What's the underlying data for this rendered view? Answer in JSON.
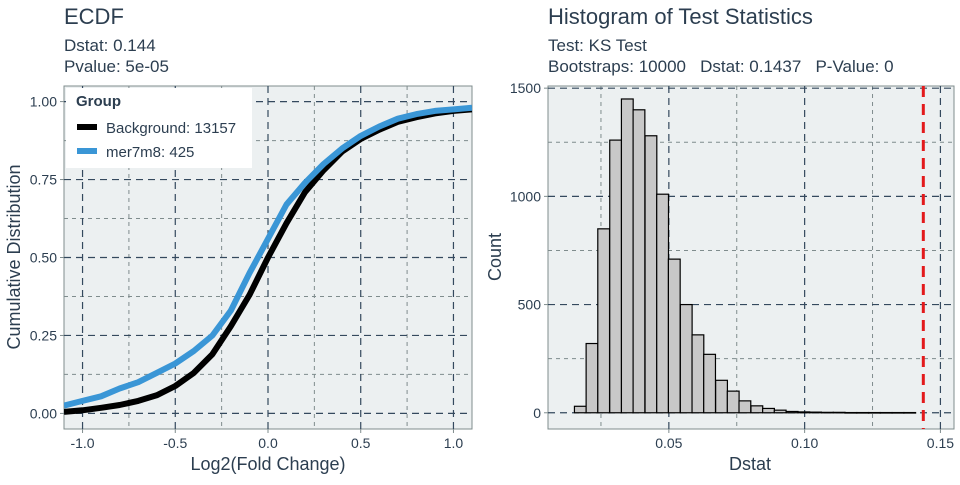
{
  "chart_data": [
    {
      "type": "line",
      "title": "ECDF",
      "subtitle_lines": [
        "Dstat: 0.144",
        "Pvalue: 5e-05"
      ],
      "xlabel": "Log2(Fold Change)",
      "ylabel": "Cumulative Distribution",
      "xlim": [
        -1.1,
        1.1
      ],
      "ylim": [
        -0.05,
        1.05
      ],
      "x_ticks": [
        -1.0,
        -0.5,
        0.0,
        0.5,
        1.0
      ],
      "x_tick_labels": [
        "-1.0",
        "-0.5",
        "0.0",
        "0.5",
        "1.0"
      ],
      "y_ticks": [
        0.0,
        0.25,
        0.5,
        0.75,
        1.0
      ],
      "y_tick_labels": [
        "0.00",
        "0.25",
        "0.50",
        "0.75",
        "1.00"
      ],
      "grid": true,
      "legend": {
        "title": "Group",
        "placement": "top-left",
        "entries": [
          "Background: 13157",
          "mer7m8: 425"
        ]
      },
      "series": [
        {
          "name": "Background: 13157",
          "color": "#000000",
          "x": [
            -1.1,
            -1.0,
            -0.9,
            -0.8,
            -0.7,
            -0.6,
            -0.5,
            -0.4,
            -0.3,
            -0.2,
            -0.1,
            0.0,
            0.1,
            0.2,
            0.3,
            0.4,
            0.5,
            0.6,
            0.7,
            0.8,
            0.9,
            1.0,
            1.1
          ],
          "y": [
            0.005,
            0.01,
            0.018,
            0.027,
            0.04,
            0.058,
            0.088,
            0.13,
            0.19,
            0.28,
            0.38,
            0.5,
            0.61,
            0.71,
            0.78,
            0.84,
            0.88,
            0.91,
            0.935,
            0.95,
            0.962,
            0.97,
            0.975
          ]
        },
        {
          "name": "mer7m8: 425",
          "color": "#3a96d6",
          "x": [
            -1.1,
            -1.0,
            -0.9,
            -0.8,
            -0.7,
            -0.6,
            -0.5,
            -0.4,
            -0.3,
            -0.2,
            -0.1,
            0.0,
            0.1,
            0.2,
            0.3,
            0.4,
            0.5,
            0.6,
            0.7,
            0.8,
            0.9,
            1.0,
            1.1
          ],
          "y": [
            0.025,
            0.04,
            0.055,
            0.08,
            0.1,
            0.13,
            0.16,
            0.2,
            0.25,
            0.33,
            0.45,
            0.56,
            0.67,
            0.74,
            0.8,
            0.85,
            0.89,
            0.92,
            0.945,
            0.96,
            0.97,
            0.975,
            0.98
          ]
        }
      ]
    },
    {
      "type": "bar",
      "title": "Histogram of Test Statistics",
      "subtitle_lines": [
        "Test: KS Test",
        "Bootstraps: 10000   Dstat: 0.1437   P-Value: 0"
      ],
      "xlabel": "Dstat",
      "ylabel": "Count",
      "xlim": [
        0.0055,
        0.155
      ],
      "ylim": [
        -75,
        1510
      ],
      "x_ticks": [
        0.05,
        0.1,
        0.15
      ],
      "x_tick_labels": [
        "0.05",
        "0.10",
        "0.15"
      ],
      "y_ticks": [
        0,
        500,
        1000,
        1500
      ],
      "y_tick_labels": [
        "0",
        "500",
        "1000",
        "1500"
      ],
      "grid": true,
      "bin_width": 0.00433,
      "bin_centers": [
        0.0174,
        0.0217,
        0.026,
        0.0304,
        0.0347,
        0.039,
        0.0434,
        0.0477,
        0.052,
        0.0564,
        0.0607,
        0.065,
        0.0694,
        0.0737,
        0.078,
        0.0824,
        0.0867,
        0.091,
        0.0954,
        0.0997,
        0.104,
        0.1084,
        0.1127,
        0.117,
        0.1214,
        0.1257,
        0.13,
        0.1344,
        0.1387
      ],
      "values": [
        30,
        320,
        850,
        1260,
        1450,
        1400,
        1280,
        1010,
        710,
        500,
        360,
        270,
        150,
        100,
        55,
        32,
        20,
        12,
        6,
        4,
        3,
        2,
        2,
        1,
        1,
        1,
        1,
        1,
        1
      ],
      "bar_fill": "#c8c8c8",
      "bar_stroke": "#000000",
      "reference_line": {
        "x": 0.1437,
        "color": "#e31a1c",
        "style": "dashed"
      }
    }
  ]
}
